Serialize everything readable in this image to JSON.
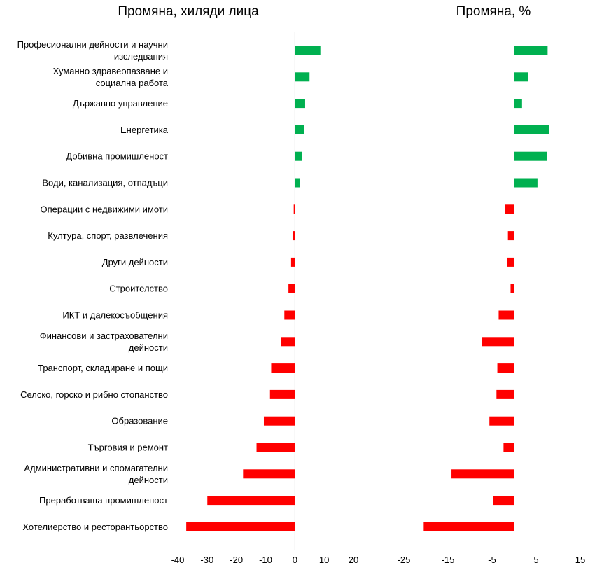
{
  "chart_data": {
    "type": "bar",
    "orientation": "horizontal",
    "categories": [
      "Професионални дейности и научни изследвания",
      "Хуманно здравеопазване и социална работа",
      "Държавно управление",
      "Енергетика",
      "Добивна промишленост",
      "Води, канализация, отпадъци",
      "Операции с недвижими имоти",
      "Култура, спорт, развлечения",
      "Други дейности",
      "Строителство",
      "ИКТ и далекосъобщения",
      "Финансови и застрахователни дейности",
      "Транспорт, складиране и пощи",
      "Селско, горско и рибно стопанство",
      "Образование",
      "Търговия и ремонт",
      "Административни и спомагателни дейности",
      "Преработваща промишленост",
      "Хотелиерство и ресторантьорство"
    ],
    "category_lines": [
      [
        "Професионални дейности и научни",
        "изследвания"
      ],
      [
        "Хуманно здравеопазване и",
        "социална работа"
      ],
      [
        "Държавно управление"
      ],
      [
        "Енергетика"
      ],
      [
        "Добивна промишленост"
      ],
      [
        "Води, канализация, отпадъци"
      ],
      [
        "Операции с недвижими имоти"
      ],
      [
        "Култура, спорт, развлечения"
      ],
      [
        "Други дейности"
      ],
      [
        "Строителство"
      ],
      [
        "ИКТ и далекосъобщения"
      ],
      [
        "Финансови и застрахователни",
        "дейности"
      ],
      [
        "Транспорт, складиране и пощи"
      ],
      [
        "Селско, горско и рибно стопанство"
      ],
      [
        "Образование"
      ],
      [
        "Търговия и ремонт"
      ],
      [
        "Административни и спомагателни",
        "дейности"
      ],
      [
        "Преработваща промишленост"
      ],
      [
        "Хотелиерство и ресторантьорство"
      ]
    ],
    "panels": [
      {
        "title": "Промяна, хиляди лица",
        "xlim": [
          -40,
          20
        ],
        "ticks": [
          "-40",
          "-30",
          "-20",
          "-10",
          "0",
          "10",
          "20"
        ],
        "tick_values": [
          -40,
          -30,
          -20,
          -10,
          0,
          10,
          20
        ],
        "values": [
          8.7,
          5.0,
          3.5,
          3.2,
          2.4,
          1.6,
          -0.4,
          -0.8,
          -1.3,
          -2.2,
          -3.6,
          -4.8,
          -8.1,
          -8.5,
          -10.6,
          -13.1,
          -17.7,
          -29.9,
          -37.1
        ]
      },
      {
        "title": "Промяна, %",
        "xlim": [
          -25,
          15
        ],
        "ticks": [
          "-25",
          "-15",
          "-5",
          "5",
          "15"
        ],
        "tick_values": [
          -25,
          -15,
          -5,
          5,
          15
        ],
        "values": [
          7.6,
          3.2,
          1.8,
          7.9,
          7.5,
          5.3,
          -2.1,
          -1.4,
          -1.6,
          -0.8,
          -3.5,
          -7.3,
          -3.8,
          -4.0,
          -5.6,
          -2.4,
          -14.2,
          -4.8,
          -20.5
        ]
      }
    ],
    "positive_color": "#00b050",
    "negative_color": "#ff0000",
    "axis_line_color": "#d9d9d9",
    "grid": false,
    "legend": "none"
  }
}
